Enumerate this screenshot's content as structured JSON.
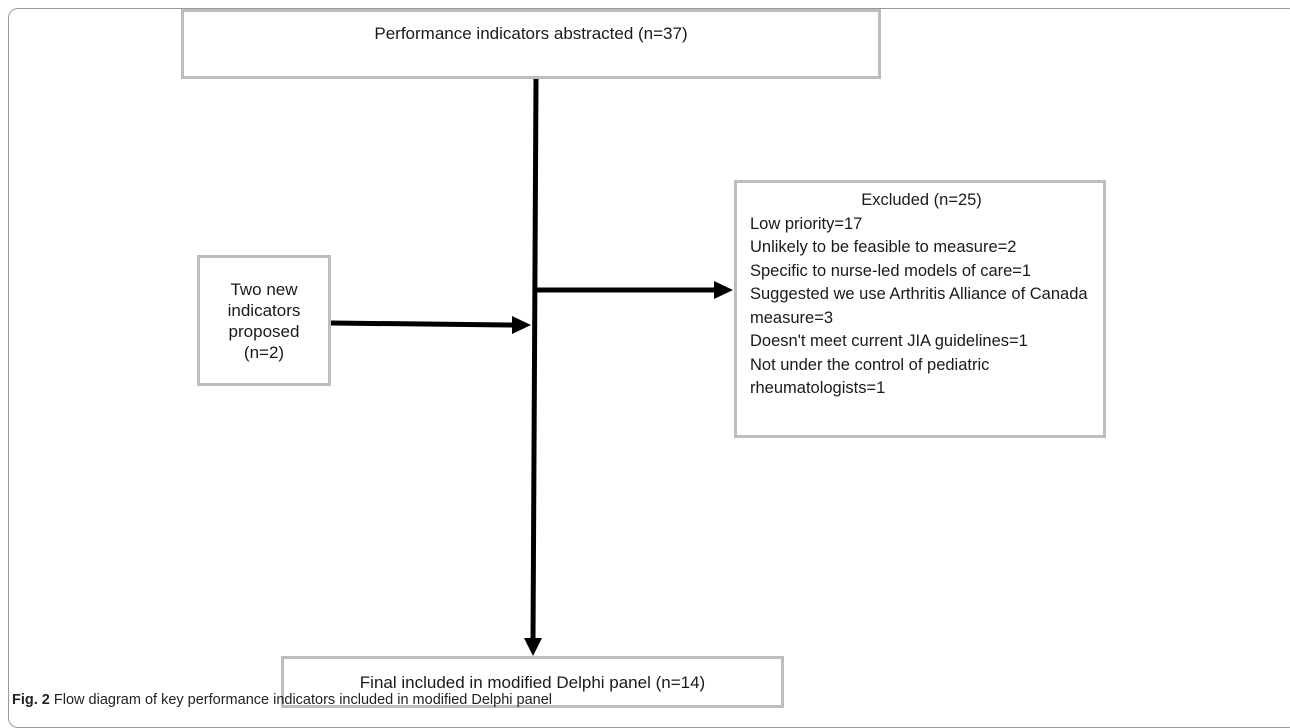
{
  "diagram": {
    "top_box": "Performance indicators abstracted (n=37)",
    "left_box": "Two new indicators proposed (n=2)",
    "right_box": {
      "heading": "Excluded (n=25)",
      "lines": [
        "Low priority=17",
        "Unlikely to be feasible to measure=2",
        "Specific to nurse-led models of care=1",
        "Suggested we use Arthritis Alliance of Canada measure=3",
        "Doesn't meet current JIA guidelines=1",
        "Not under the control of pediatric rheumatologists=1"
      ]
    },
    "bottom_box": "Final included in modified Delphi panel (n=14)"
  },
  "caption": {
    "label": "Fig. 2",
    "text": " Flow diagram of key performance indicators included in modified Delphi panel"
  },
  "colors": {
    "box_border": "#bdbdbd",
    "arrow": "#000000",
    "frame": "#9a9a9a"
  }
}
